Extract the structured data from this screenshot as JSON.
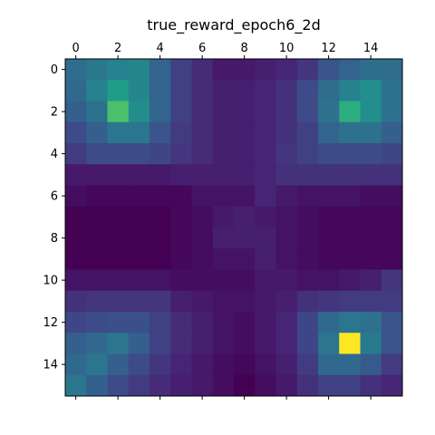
{
  "chart_data": {
    "type": "heatmap",
    "title": "true_reward_epoch6_2d",
    "xlabel": "",
    "ylabel": "",
    "colormap": "viridis",
    "grid": false,
    "x_axis_position": "top",
    "x_ticks": [
      0,
      2,
      4,
      6,
      8,
      10,
      12,
      14
    ],
    "y_ticks": [
      0,
      2,
      4,
      6,
      8,
      10,
      12,
      14
    ],
    "x_range": [
      -0.5,
      15.5
    ],
    "y_range": [
      -0.5,
      15.5
    ],
    "value_range": [
      0,
      1
    ],
    "values": [
      [
        0.4,
        0.45,
        0.5,
        0.52,
        0.36,
        0.22,
        0.14,
        0.08,
        0.08,
        0.1,
        0.12,
        0.18,
        0.3,
        0.36,
        0.4,
        0.4
      ],
      [
        0.38,
        0.5,
        0.62,
        0.52,
        0.36,
        0.22,
        0.14,
        0.1,
        0.1,
        0.12,
        0.16,
        0.26,
        0.4,
        0.5,
        0.56,
        0.42
      ],
      [
        0.34,
        0.42,
        0.8,
        0.55,
        0.36,
        0.22,
        0.14,
        0.1,
        0.1,
        0.12,
        0.16,
        0.26,
        0.42,
        0.7,
        0.56,
        0.42
      ],
      [
        0.26,
        0.34,
        0.44,
        0.44,
        0.3,
        0.2,
        0.14,
        0.1,
        0.1,
        0.12,
        0.16,
        0.22,
        0.36,
        0.42,
        0.42,
        0.34
      ],
      [
        0.2,
        0.26,
        0.26,
        0.26,
        0.24,
        0.18,
        0.14,
        0.1,
        0.1,
        0.12,
        0.18,
        0.22,
        0.26,
        0.26,
        0.26,
        0.24
      ],
      [
        0.08,
        0.08,
        0.08,
        0.08,
        0.08,
        0.1,
        0.1,
        0.1,
        0.1,
        0.12,
        0.16,
        0.16,
        0.16,
        0.16,
        0.16,
        0.16
      ],
      [
        0.04,
        0.02,
        0.02,
        0.02,
        0.02,
        0.02,
        0.06,
        0.06,
        0.06,
        0.12,
        0.08,
        0.06,
        0.06,
        0.06,
        0.04,
        0.04
      ],
      [
        0.0,
        0.0,
        0.0,
        0.0,
        0.0,
        0.02,
        0.04,
        0.08,
        0.1,
        0.08,
        0.06,
        0.04,
        0.02,
        0.02,
        0.02,
        0.02
      ],
      [
        0.0,
        0.0,
        0.0,
        0.0,
        0.0,
        0.02,
        0.04,
        0.1,
        0.1,
        0.1,
        0.06,
        0.04,
        0.02,
        0.02,
        0.02,
        0.02
      ],
      [
        0.0,
        0.0,
        0.0,
        0.0,
        0.0,
        0.02,
        0.04,
        0.06,
        0.06,
        0.1,
        0.06,
        0.04,
        0.02,
        0.02,
        0.02,
        0.02
      ],
      [
        0.06,
        0.06,
        0.06,
        0.06,
        0.06,
        0.04,
        0.04,
        0.04,
        0.04,
        0.08,
        0.08,
        0.06,
        0.06,
        0.08,
        0.1,
        0.18
      ],
      [
        0.16,
        0.18,
        0.18,
        0.18,
        0.18,
        0.1,
        0.08,
        0.06,
        0.06,
        0.08,
        0.1,
        0.16,
        0.18,
        0.2,
        0.2,
        0.2
      ],
      [
        0.24,
        0.26,
        0.28,
        0.28,
        0.22,
        0.14,
        0.1,
        0.06,
        0.04,
        0.08,
        0.12,
        0.24,
        0.38,
        0.44,
        0.42,
        0.3
      ],
      [
        0.34,
        0.38,
        0.44,
        0.34,
        0.22,
        0.14,
        0.1,
        0.06,
        0.04,
        0.08,
        0.12,
        0.24,
        0.44,
        1.0,
        0.46,
        0.3
      ],
      [
        0.38,
        0.44,
        0.34,
        0.26,
        0.18,
        0.12,
        0.08,
        0.04,
        0.02,
        0.06,
        0.1,
        0.2,
        0.38,
        0.38,
        0.32,
        0.2
      ],
      [
        0.44,
        0.34,
        0.26,
        0.2,
        0.14,
        0.1,
        0.08,
        0.04,
        0.0,
        0.04,
        0.08,
        0.16,
        0.22,
        0.22,
        0.16,
        0.12
      ]
    ]
  }
}
